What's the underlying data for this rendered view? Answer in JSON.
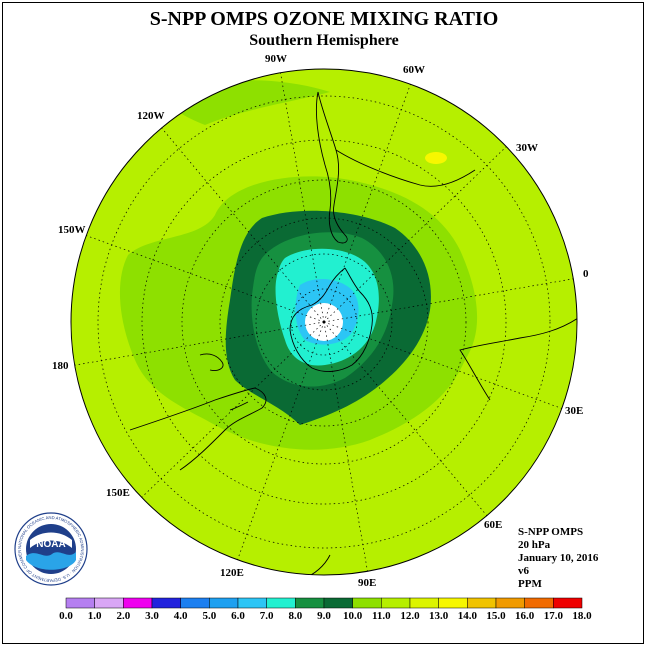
{
  "header": {
    "title": "S-NPP OMPS OZONE MIXING RATIO",
    "subtitle": "Southern Hemisphere"
  },
  "map": {
    "projection": "south polar stereographic",
    "longitude_labels": [
      "90W",
      "60W",
      "30W",
      "0",
      "30E",
      "60E",
      "90E",
      "120E",
      "150E",
      "180",
      "150W",
      "120W"
    ]
  },
  "info": {
    "instrument": "S-NPP OMPS",
    "level": "20 hPa",
    "date": "January 10, 2016",
    "version": "v6",
    "units": "PPM"
  },
  "colorbar": {
    "ticks": [
      "0.0",
      "1.0",
      "2.0",
      "3.0",
      "4.0",
      "5.0",
      "6.0",
      "7.0",
      "8.0",
      "9.0",
      "10.0",
      "11.0",
      "12.0",
      "13.0",
      "14.0",
      "15.0",
      "16.0",
      "17.0",
      "18.0"
    ],
    "colors": [
      "#b57ff0",
      "#d9a6f5",
      "#ee00ee",
      "#2222dd",
      "#1c7ff0",
      "#1ea0f0",
      "#2cc5f5",
      "#22f0d0",
      "#169040",
      "#0a6a34",
      "#8ee000",
      "#b6ef00",
      "#dcf400",
      "#f7f700",
      "#f0c300",
      "#f09a00",
      "#f06a00",
      "#ee0000",
      "#8a5a3c"
    ]
  },
  "logo": {
    "text": "NOAA",
    "ring_text": "NATIONAL OCEANIC AND ATMOSPHERIC ADMINISTRATION · U.S. DEPARTMENT OF COMMERCE"
  }
}
